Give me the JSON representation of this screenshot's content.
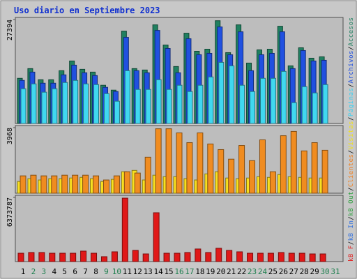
{
  "chart_data": {
    "type": "bar",
    "title": "Uso diario en Septiembre 2023",
    "categories": [
      "1",
      "2",
      "3",
      "4",
      "5",
      "6",
      "7",
      "8",
      "9",
      "10",
      "11",
      "12",
      "13",
      "14",
      "15",
      "16",
      "17",
      "18",
      "19",
      "20",
      "21",
      "22",
      "23",
      "24",
      "25",
      "26",
      "27",
      "28",
      "29",
      "30",
      "31"
    ],
    "category_colors": [
      "#000000",
      "#208050",
      "#208050",
      "#000000",
      "#000000",
      "#000000",
      "#000000",
      "#000000",
      "#208050",
      "#208050",
      "#000000",
      "#000000",
      "#000000",
      "#000000",
      "#000000",
      "#208050",
      "#208050",
      "#000000",
      "#000000",
      "#000000",
      "#000000",
      "#000000",
      "#208050",
      "#208050",
      "#000000",
      "#000000",
      "#000000",
      "#000000",
      "#000000",
      "#208050",
      "#208050"
    ],
    "legend_separator": "/",
    "legend": [
      {
        "label": "kB F",
        "color": "#e02020"
      },
      {
        "label": "kB In",
        "color": "#3070e0"
      },
      {
        "label": "kB Out",
        "color": "#30a040"
      },
      {
        "label": "Clientes",
        "color": "#f08020"
      },
      {
        "label": "Visitas",
        "color": "#f0e020"
      },
      {
        "label": "Páginas",
        "color": "#40d0f0"
      },
      {
        "label": "Archivos",
        "color": "#2050e0"
      },
      {
        "label": "Accesos",
        "color": "#208060"
      }
    ],
    "panels": [
      {
        "ylim": [
          0,
          27394
        ],
        "yticks": [
          27394
        ],
        "series": [
          {
            "color": "#208060",
            "values": [
              11900,
              14460,
              11530,
              11530,
              13910,
              16470,
              14270,
              13540,
              10070,
              8780,
              24340,
              14460,
              14090,
              25990,
              20680,
              15010,
              23790,
              19030,
              19580,
              27080,
              18670,
              25990,
              15920,
              19400,
              19580,
              25620,
              15190,
              19950,
              17200,
              17570,
              null
            ]
          },
          {
            "color": "#2050e0",
            "values": [
              11350,
              13540,
              10610,
              10610,
              12810,
              15370,
              13360,
              12630,
              9520,
              8420,
              22690,
              13910,
              13360,
              24520,
              19760,
              13360,
              22330,
              18120,
              18480,
              25440,
              18120,
              24160,
              13910,
              18120,
              18480,
              24160,
              14460,
              19220,
              16470,
              16650,
              null
            ]
          },
          {
            "color": "#40d8f0",
            "values": [
              9150,
              10430,
              8240,
              9150,
              10800,
              11350,
              10430,
              10250,
              7870,
              5860,
              13910,
              8970,
              8970,
              11530,
              8970,
              10070,
              8420,
              10070,
              12260,
              16100,
              15190,
              10070,
              8420,
              11900,
              11900,
              13730,
              5490,
              9700,
              8050,
              10250,
              null
            ]
          }
        ]
      },
      {
        "ylim": [
          0,
          3968
        ],
        "yticks": [
          3968
        ],
        "series": [
          {
            "color": "#f8e020",
            "values": [
              710,
              880,
              800,
              880,
              880,
              920,
              960,
              880,
              710,
              840,
              1300,
              1380,
              800,
              1090,
              1000,
              1000,
              880,
              800,
              1170,
              1300,
              920,
              880,
              920,
              1000,
              960,
              1130,
              1000,
              960,
              920,
              920,
              null
            ]
          },
          {
            "color": "#f08c20",
            "values": [
              1050,
              1090,
              1050,
              1050,
              1090,
              1090,
              1090,
              1050,
              800,
              1050,
              1300,
              1220,
              2180,
              3900,
              3900,
              3650,
              3060,
              3650,
              2980,
              2640,
              2060,
              2890,
              1970,
              3230,
              1300,
              3480,
              3740,
              2560,
              3060,
              2600,
              null
            ]
          }
        ]
      },
      {
        "ylim": [
          0,
          6373787
        ],
        "yticks": [
          6373787
        ],
        "series": [
          {
            "color": "#e01818",
            "values": [
              830000,
              900000,
              900000,
              830000,
              830000,
              830000,
              1040000,
              830000,
              485000,
              970000,
              6300000,
              1110000,
              760000,
              4850000,
              830000,
              830000,
              900000,
              1250000,
              900000,
              1320000,
              1110000,
              970000,
              830000,
              830000,
              830000,
              900000,
              830000,
              830000,
              760000,
              760000,
              null
            ]
          }
        ]
      }
    ]
  }
}
